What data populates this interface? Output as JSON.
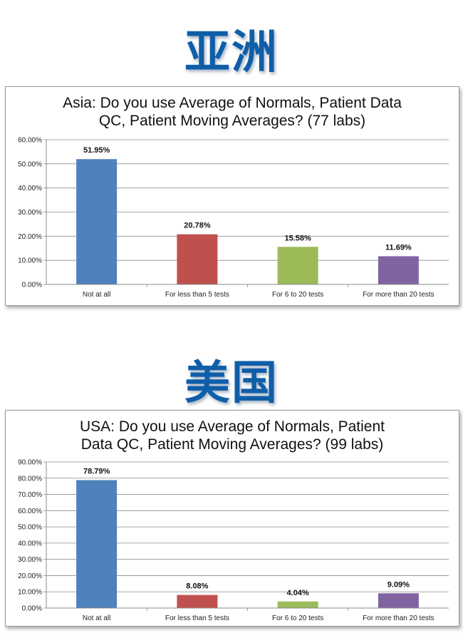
{
  "headings": {
    "asia": "亚洲",
    "usa": "美国"
  },
  "colors": {
    "heading": "#0f5ea8",
    "series": [
      "#4f81bd",
      "#c0504d",
      "#9bbb59",
      "#8064a2"
    ]
  },
  "chart_data": [
    {
      "type": "bar",
      "title": "Asia: Do you use Average of Normals, Patient Data QC, Patient Moving Averages? (77 labs)",
      "title_lines": [
        "Asia: Do you use Average of Normals, Patient Data",
        "QC, Patient Moving Averages? (77 labs)"
      ],
      "categories": [
        "Not at all",
        "For less than 5 tests",
        "For 6 to 20 tests",
        "For more than 20 tests"
      ],
      "values": [
        51.95,
        20.78,
        15.58,
        11.69
      ],
      "data_labels": [
        "51.95%",
        "20.78%",
        "15.58%",
        "11.69%"
      ],
      "ylim": [
        0,
        60
      ],
      "yticks": [
        "0.00%",
        "10.00%",
        "20.00%",
        "30.00%",
        "40.00%",
        "50.00%",
        "60.00%"
      ],
      "grid": true
    },
    {
      "type": "bar",
      "title": "USA: Do you use Average of Normals, Patient Data QC, Patient Moving Averages? (99 labs)",
      "title_lines": [
        "USA: Do you use Average of Normals, Patient",
        "Data QC, Patient Moving Averages? (99 labs)"
      ],
      "categories": [
        "Not at all",
        "For less than 5 tests",
        "For 6 to 20 tests",
        "For more than 20 tests"
      ],
      "values": [
        78.79,
        8.08,
        4.04,
        9.09
      ],
      "data_labels": [
        "78.79%",
        "8.08%",
        "4.04%",
        "9.09%"
      ],
      "ylim": [
        0,
        90
      ],
      "yticks": [
        "0.00%",
        "10.00%",
        "20.00%",
        "30.00%",
        "40.00%",
        "50.00%",
        "60.00%",
        "70.00%",
        "80.00%",
        "90.00%"
      ],
      "grid": true
    }
  ]
}
